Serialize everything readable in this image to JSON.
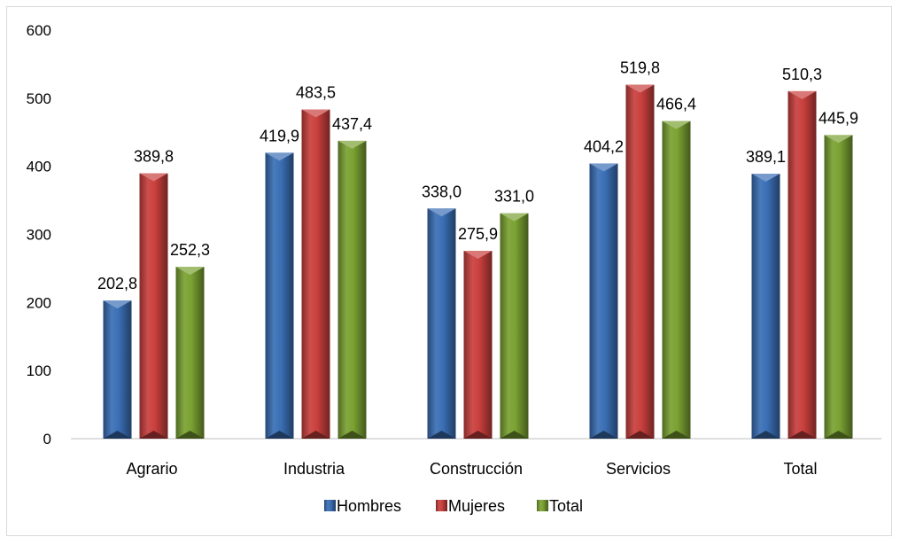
{
  "chart_data": {
    "type": "bar",
    "title": "",
    "xlabel": "",
    "ylabel": "",
    "categories": [
      "Agrario",
      "Industria",
      "Construcción",
      "Servicios",
      "Total"
    ],
    "series": [
      {
        "name": "Hombres",
        "values": [
          202.8,
          419.9,
          338.0,
          404.2,
          389.1
        ],
        "labels": [
          "202,8",
          "419,9",
          "338,0",
          "404,2",
          "389,1"
        ],
        "color": "#3a6fb5"
      },
      {
        "name": "Mujeres",
        "values": [
          389.8,
          483.5,
          275.9,
          519.8,
          510.3
        ],
        "labels": [
          "389,8",
          "483,5",
          "275,9",
          "519,8",
          "510,3"
        ],
        "color": "#c9403d"
      },
      {
        "name": "Total",
        "values": [
          252.3,
          437.4,
          331.0,
          466.4,
          445.9
        ],
        "labels": [
          "252,3",
          "437,4",
          "331,0",
          "466,4",
          "445,9"
        ],
        "color": "#7aa132"
      }
    ],
    "ylim": [
      0,
      600
    ],
    "yticks": [
      "0",
      "100",
      "200",
      "300",
      "400",
      "500",
      "600"
    ],
    "grid": false,
    "legend_position": "bottom"
  }
}
